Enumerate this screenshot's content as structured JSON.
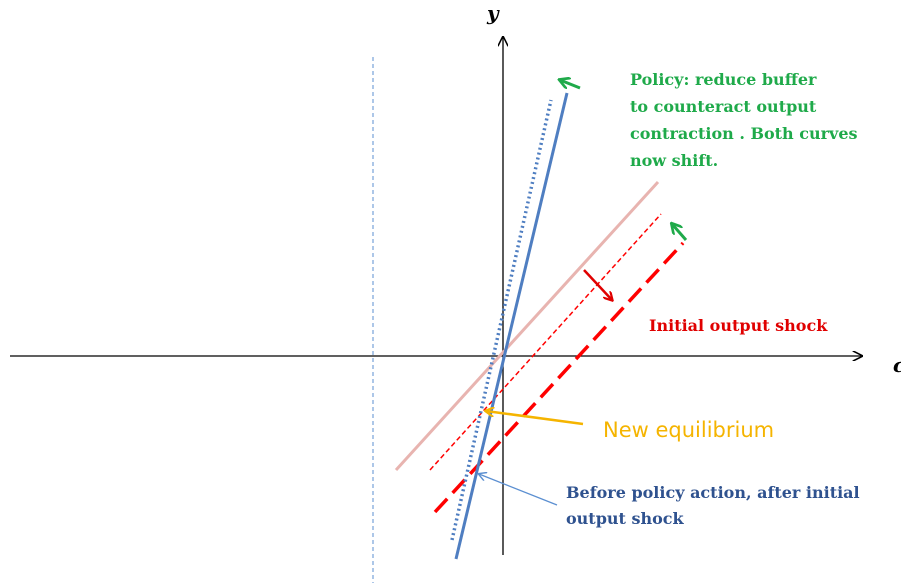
{
  "axes": {
    "y_label": "y",
    "x_label": "c"
  },
  "annotations": {
    "policy_line1": "Policy: reduce buffer",
    "policy_line2": "to counteract output",
    "policy_line3": "contraction . Both curves",
    "policy_line4": "now shift.",
    "initial_shock": "Initial output shock",
    "new_equilibrium": "New equilibrium",
    "before_policy_line1": "Before policy action, after initial",
    "before_policy_line2": "output shock"
  },
  "colors": {
    "axis": "#000000",
    "steep_curve": "#4f7ec1",
    "steep_shifted": "#4f7ec1",
    "original_upward": "#e8b4b0",
    "shifted_upward_thin": "#ff0000",
    "shifted_upward_thick": "#ff0000",
    "policy_text": "#1faa4a",
    "policy_arrow": "#1faa4a",
    "shock_text": "#e00000",
    "shock_arrow": "#e00000",
    "equilibrium_text": "#f5b400",
    "equilibrium_arrow": "#f5b400",
    "before_text": "#2f528f",
    "before_arrow": "#5b8fd1",
    "vertical_dashed": "#5b8fd1"
  }
}
